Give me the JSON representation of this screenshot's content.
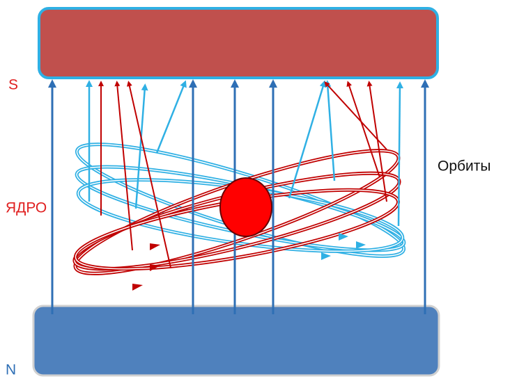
{
  "poles": {
    "south": "S",
    "north": "N"
  },
  "core": "ЯДРО",
  "orbits": "Орбиты"
}
